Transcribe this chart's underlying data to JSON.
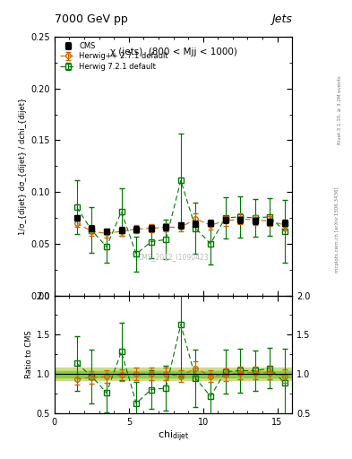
{
  "title_main": "7000 GeV pp",
  "title_right": "Jets",
  "annotation": "χ (jets)  (800 < Mjj < 1000)",
  "watermark": "CMS_2012_I1090423",
  "rivet_label": "Rivet 3.1.10, ≥ 3.2M events",
  "arxiv_label": "mcplots.cern.ch [arXiv:1306.3436]",
  "xlabel": "chi_{dijet}",
  "ylabel_main": "1/σ_{dijet} dσ_{dijet} / dchi_{dijet}",
  "ylabel_ratio": "Ratio to CMS",
  "xlim": [
    0,
    16
  ],
  "ylim_main": [
    0,
    0.25
  ],
  "ylim_ratio": [
    0.5,
    2.0
  ],
  "cms_x": [
    1.5,
    2.5,
    3.5,
    4.5,
    5.5,
    6.5,
    7.5,
    8.5,
    9.5,
    10.5,
    11.5,
    12.5,
    13.5,
    14.5,
    15.5
  ],
  "cms_y": [
    0.075,
    0.065,
    0.062,
    0.063,
    0.064,
    0.065,
    0.066,
    0.068,
    0.069,
    0.07,
    0.073,
    0.073,
    0.072,
    0.071,
    0.07
  ],
  "cms_yerr": [
    0.003,
    0.003,
    0.003,
    0.003,
    0.003,
    0.003,
    0.003,
    0.003,
    0.003,
    0.003,
    0.003,
    0.003,
    0.003,
    0.003,
    0.003
  ],
  "hpp_x": [
    1.5,
    2.5,
    3.5,
    4.5,
    5.5,
    6.5,
    7.5,
    8.5,
    9.5,
    10.5,
    11.5,
    12.5,
    13.5,
    14.5,
    15.5
  ],
  "hpp_y": [
    0.07,
    0.062,
    0.06,
    0.062,
    0.064,
    0.065,
    0.066,
    0.066,
    0.074,
    0.068,
    0.072,
    0.074,
    0.073,
    0.072,
    0.068
  ],
  "hpp_yerr": [
    0.004,
    0.004,
    0.004,
    0.004,
    0.004,
    0.004,
    0.004,
    0.004,
    0.005,
    0.004,
    0.005,
    0.005,
    0.005,
    0.005,
    0.005
  ],
  "h72_x": [
    1.5,
    2.5,
    3.5,
    4.5,
    5.5,
    6.5,
    7.5,
    8.5,
    9.5,
    10.5,
    11.5,
    12.5,
    13.5,
    14.5,
    15.5
  ],
  "h72_y": [
    0.085,
    0.063,
    0.047,
    0.081,
    0.04,
    0.052,
    0.054,
    0.111,
    0.065,
    0.05,
    0.075,
    0.076,
    0.075,
    0.076,
    0.062
  ],
  "h72_yerr": [
    0.026,
    0.022,
    0.015,
    0.023,
    0.017,
    0.016,
    0.019,
    0.045,
    0.025,
    0.02,
    0.02,
    0.02,
    0.018,
    0.018,
    0.03
  ],
  "cms_color": "#000000",
  "hpp_color": "#cc6600",
  "h72_color": "#007700",
  "ratio_band_green": "#88cc44",
  "ratio_band_yellow": "#ccdd88",
  "yticks_main": [
    0.0,
    0.05,
    0.1,
    0.15,
    0.2,
    0.25
  ],
  "yticks_ratio": [
    0.5,
    1.0,
    1.5,
    2.0
  ],
  "xticks": [
    0,
    5,
    10,
    15
  ]
}
